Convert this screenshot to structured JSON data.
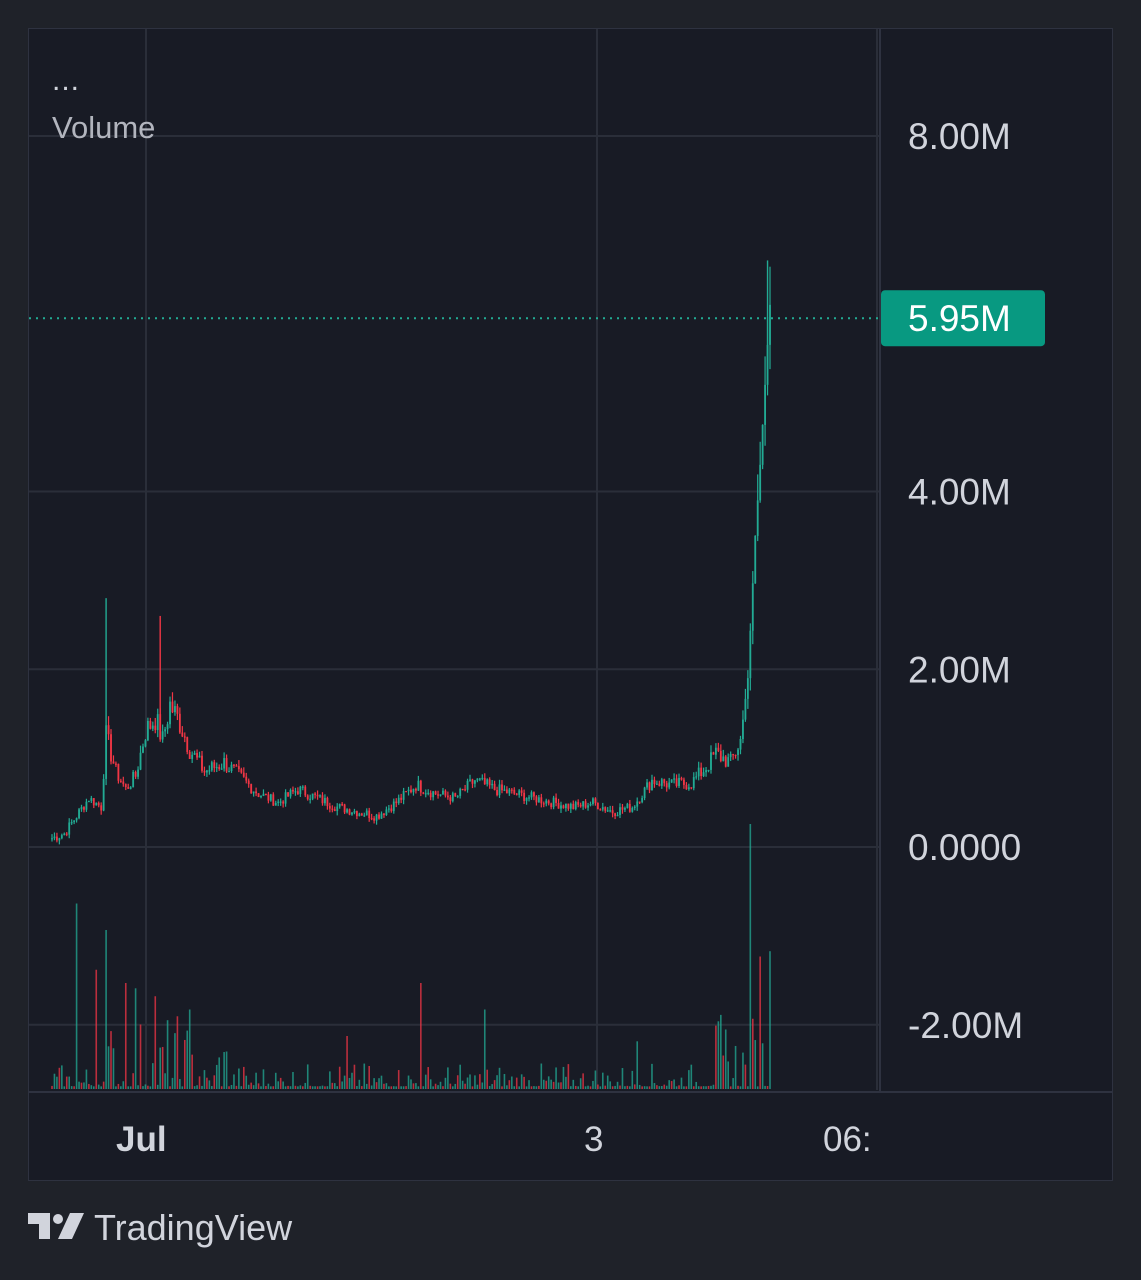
{
  "legend": {
    "more": "...",
    "title": "Volume"
  },
  "branding": {
    "name": "TradingView",
    "logo_icon": "tradingview-logo-icon"
  },
  "colors": {
    "background": "#181b25",
    "outer": "#1f2229",
    "grid": "#2a2e39",
    "text": "#d1d4dc",
    "up": "#22ab94",
    "down": "#f23645",
    "last_price_bg": "#089981"
  },
  "chart_data": {
    "type": "candlestick",
    "y_ticks": [
      "8.00M",
      "4.00M",
      "2.00M",
      "0.0000",
      "-2.00M"
    ],
    "y_tick_values": [
      8000000,
      4000000,
      2000000,
      0,
      -2000000
    ],
    "last_value_label": "5.95M",
    "last_value": 5950000,
    "x_ticks": [
      {
        "label": "Jul",
        "bold": true
      },
      {
        "label": "3",
        "bold": false
      },
      {
        "label": "06:",
        "bold": false
      }
    ],
    "grid": true,
    "shape_keypoints": [
      [
        0,
        0.1
      ],
      [
        5,
        0.15
      ],
      [
        10,
        0.35
      ],
      [
        15,
        0.55
      ],
      [
        20,
        0.45
      ],
      [
        22,
        1.25
      ],
      [
        26,
        0.85
      ],
      [
        30,
        0.65
      ],
      [
        34,
        0.8
      ],
      [
        38,
        1.3
      ],
      [
        42,
        1.45
      ],
      [
        45,
        1.2
      ],
      [
        48,
        1.6
      ],
      [
        52,
        1.4
      ],
      [
        56,
        1.1
      ],
      [
        62,
        0.85
      ],
      [
        70,
        0.95
      ],
      [
        76,
        0.8
      ],
      [
        84,
        0.6
      ],
      [
        92,
        0.5
      ],
      [
        100,
        0.65
      ],
      [
        108,
        0.55
      ],
      [
        116,
        0.45
      ],
      [
        124,
        0.4
      ],
      [
        132,
        0.35
      ],
      [
        140,
        0.5
      ],
      [
        148,
        0.7
      ],
      [
        156,
        0.6
      ],
      [
        164,
        0.55
      ],
      [
        172,
        0.75
      ],
      [
        180,
        0.65
      ],
      [
        188,
        0.6
      ],
      [
        196,
        0.55
      ],
      [
        204,
        0.5
      ],
      [
        212,
        0.45
      ],
      [
        220,
        0.5
      ],
      [
        228,
        0.4
      ],
      [
        236,
        0.45
      ],
      [
        244,
        0.75
      ],
      [
        252,
        0.7
      ],
      [
        260,
        0.72
      ],
      [
        266,
        0.9
      ],
      [
        270,
        1.05
      ],
      [
        276,
        0.95
      ],
      [
        280,
        1.2
      ],
      [
        283,
        1.9
      ],
      [
        286,
        3.5
      ],
      [
        288,
        4.3
      ],
      [
        290,
        5.2
      ],
      [
        292,
        6.1
      ]
    ],
    "volume_spikes": [
      [
        10,
        0.7
      ],
      [
        18,
        0.45
      ],
      [
        22,
        0.6
      ],
      [
        30,
        0.4
      ],
      [
        34,
        0.38
      ],
      [
        42,
        0.35
      ],
      [
        56,
        0.3
      ],
      [
        120,
        0.2
      ],
      [
        150,
        0.4
      ],
      [
        176,
        0.3
      ],
      [
        238,
        0.18
      ],
      [
        284,
        1.0
      ],
      [
        288,
        0.5
      ],
      [
        292,
        0.52
      ]
    ]
  }
}
